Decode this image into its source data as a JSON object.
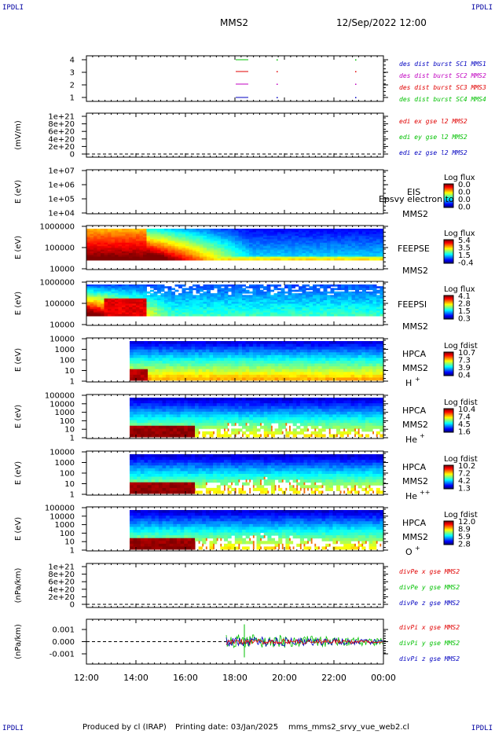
{
  "corners": {
    "top_left": "IPDLI",
    "top_right": "IPDLI",
    "bottom_left": "IPDLI",
    "bottom_right": "IPDLI"
  },
  "header": {
    "spacecraft": "MMS2",
    "datetime": "12/Sep/2022 12:00"
  },
  "footer": {
    "producer": "Produced by cl (IRAP)",
    "print_date": "Printing date: 03/Jan/2025",
    "script": "mms_mms2_srvy_vue_web2.cl"
  },
  "colors": {
    "black": "#000000",
    "red": "#e00000",
    "green": "#00c000",
    "blue": "#0000c0",
    "magenta": "#c000c0"
  },
  "chart_data": [
    {
      "type": "line",
      "id": "burst",
      "ylabel": "",
      "yticks": [
        "1",
        "2",
        "3",
        "4"
      ],
      "legend": [
        {
          "text": "des dist burst SC1 MMS1",
          "color": "#0000c0"
        },
        {
          "text": "des dist burst SC2 MMS2",
          "color": "#c000c0"
        },
        {
          "text": "des dist burst SC3 MMS3",
          "color": "#e00000"
        },
        {
          "text": "des dist burst SC4 MMS4",
          "color": "#00c000"
        }
      ]
    },
    {
      "type": "line",
      "id": "edi",
      "ylabel": "(mV/m)",
      "yticks": [
        "1e+21",
        "8e+20",
        "6e+20",
        "4e+20",
        "2e+20",
        "0"
      ],
      "legend": [
        {
          "text": "edi ex gse l2 MMS2",
          "color": "#e00000"
        },
        {
          "text": "edi ey gse l2 MMS2",
          "color": "#00c000"
        },
        {
          "text": "edi ez gse l2 MMS2",
          "color": "#0000c0"
        }
      ]
    },
    {
      "type": "heatmap",
      "id": "eis",
      "ylabel": "E (eV)",
      "yticks": [
        "1e+07",
        "1e+06",
        "1e+05",
        "1e+04"
      ],
      "side_labels": [
        "EIS",
        "MMS2"
      ],
      "overlay_text": "Epsvy electron to",
      "colorbar_title": "Log flux",
      "colorbar_ticks": [
        "0.0",
        "0.0",
        "0.0",
        "0.0"
      ]
    },
    {
      "type": "heatmap",
      "id": "feepse",
      "ylabel": "E (eV)",
      "yticks": [
        "1000000",
        "100000",
        "10000"
      ],
      "side_labels": [
        "FEEPSE",
        "MMS2"
      ],
      "colorbar_title": "Log flux",
      "colorbar_ticks": [
        "5.4",
        "3.5",
        "1.5",
        "-0.4"
      ]
    },
    {
      "type": "heatmap",
      "id": "feepsi",
      "ylabel": "E (eV)",
      "yticks": [
        "1000000",
        "100000",
        "10000"
      ],
      "side_labels": [
        "FEEPSI",
        "MMS2"
      ],
      "colorbar_title": "Log flux",
      "colorbar_ticks": [
        "4.1",
        "2.8",
        "1.5",
        "0.3"
      ]
    },
    {
      "type": "heatmap",
      "id": "hpca_h",
      "ylabel": "E (eV)",
      "yticks": [
        "10000",
        "1000",
        "100",
        "10",
        "1"
      ],
      "side_labels": [
        "HPCA",
        "MMS2"
      ],
      "species": "H",
      "species_sup": "+",
      "colorbar_title": "Log fdist",
      "colorbar_ticks": [
        "10.7",
        "7.3",
        "3.9",
        "0.4"
      ]
    },
    {
      "type": "heatmap",
      "id": "hpca_he",
      "ylabel": "E (eV)",
      "yticks": [
        "100000",
        "10000",
        "1000",
        "100",
        "10",
        "1"
      ],
      "side_labels": [
        "HPCA",
        "MMS2"
      ],
      "species": "He",
      "species_sup": "+",
      "colorbar_title": "Log fdist",
      "colorbar_ticks": [
        "10.4",
        "7.4",
        "4.5",
        "1.6"
      ]
    },
    {
      "type": "heatmap",
      "id": "hpca_hepp",
      "ylabel": "E (eV)",
      "yticks": [
        "10000",
        "1000",
        "100",
        "10",
        "1"
      ],
      "side_labels": [
        "HPCA",
        "MMS2"
      ],
      "species": "He",
      "species_sup": "++",
      "colorbar_title": "Log fdist",
      "colorbar_ticks": [
        "10.2",
        "7.2",
        "4.2",
        "1.3"
      ]
    },
    {
      "type": "heatmap",
      "id": "hpca_o",
      "ylabel": "E (eV)",
      "yticks": [
        "100000",
        "10000",
        "1000",
        "100",
        "10",
        "1"
      ],
      "side_labels": [
        "HPCA",
        "MMS2"
      ],
      "species": "O",
      "species_sup": "+",
      "colorbar_title": "Log fdist",
      "colorbar_ticks": [
        "12.0",
        "8.9",
        "5.9",
        "2.8"
      ]
    },
    {
      "type": "line",
      "id": "divpe",
      "ylabel": "(nPa/km)",
      "yticks": [
        "1e+21",
        "8e+20",
        "6e+20",
        "4e+20",
        "2e+20",
        "0"
      ],
      "legend": [
        {
          "text": "divPe x gse MMS2",
          "color": "#e00000"
        },
        {
          "text": "divPe y gse MMS2",
          "color": "#00c000"
        },
        {
          "text": "divPe z gse MMS2",
          "color": "#0000c0"
        }
      ]
    },
    {
      "type": "line",
      "id": "divpi",
      "ylabel": "(nPa/km)",
      "yticks": [
        "0.001",
        "0.000",
        "-0.001"
      ],
      "legend": [
        {
          "text": "divPi x gse MMS2",
          "color": "#e00000"
        },
        {
          "text": "divPi y gse MMS2",
          "color": "#00c000"
        },
        {
          "text": "divPi z gse MMS2",
          "color": "#0000c0"
        }
      ]
    }
  ],
  "x_axis": {
    "ticks": [
      "12:00",
      "14:00",
      "16:00",
      "18:00",
      "20:00",
      "22:00",
      "00:00"
    ]
  }
}
